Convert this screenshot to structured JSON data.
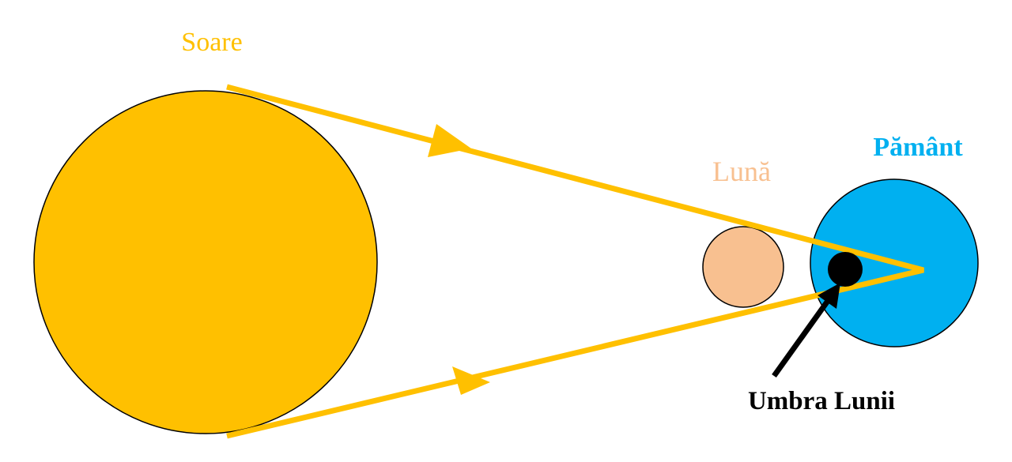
{
  "labels": {
    "sun": "Soare",
    "moon": "Lună",
    "earth": "Pământ",
    "moon_shadow": "Umbra Lunii"
  },
  "colors": {
    "sun": "#FFC000",
    "ray": "#FFC000",
    "moon": "#F8C090",
    "earth": "#00B0F0",
    "shadow": "#000000",
    "label_sun": "#FFC000",
    "label_moon": "#F8C090",
    "label_earth": "#00B0F0",
    "label_shadow": "#000000"
  }
}
